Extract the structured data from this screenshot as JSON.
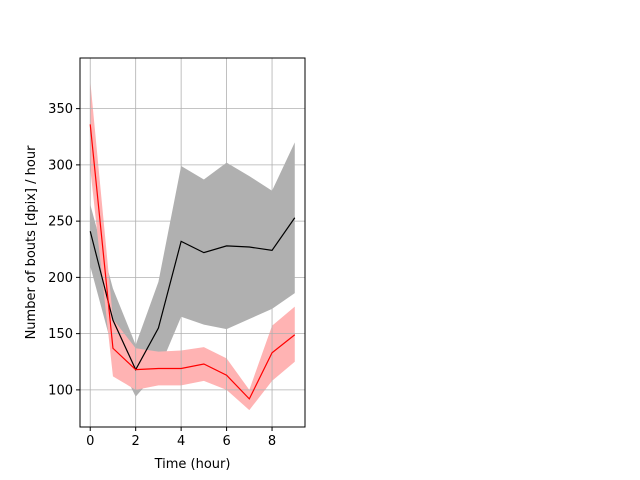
{
  "chart_data": {
    "type": "line",
    "xlabel": "Time (hour)",
    "ylabel": "Number of bouts [dpix]  / hour",
    "xlim": [
      -0.45,
      9.45
    ],
    "ylim": [
      67,
      395
    ],
    "xticks": [
      0,
      2,
      4,
      6,
      8
    ],
    "yticks": [
      100,
      150,
      200,
      250,
      300,
      350
    ],
    "grid": true,
    "x": [
      0,
      1,
      2,
      3,
      4,
      5,
      6,
      7,
      8,
      9
    ],
    "series": [
      {
        "color": "#000000",
        "band_color": "#b0b0b0",
        "values": [
          241,
          162,
          118,
          155,
          232,
          222,
          228,
          227,
          224,
          253
        ],
        "lower": [
          210,
          135,
          94,
          117,
          165,
          158,
          154,
          163,
          172,
          186
        ],
        "upper": [
          265,
          190,
          140,
          196,
          299,
          287,
          302,
          290,
          277,
          320
        ]
      },
      {
        "color": "#ff0000",
        "band_color": "#ffb3b3",
        "values": [
          336,
          137,
          118,
          119,
          119,
          123,
          113,
          92,
          133,
          149
        ],
        "lower": [
          297,
          112,
          100,
          104,
          104,
          108,
          100,
          82,
          108,
          125
        ],
        "upper": [
          375,
          163,
          137,
          134,
          135,
          138,
          128,
          100,
          157,
          174
        ]
      }
    ]
  }
}
